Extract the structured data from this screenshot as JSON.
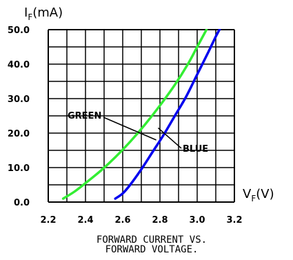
{
  "chart_data": {
    "type": "line",
    "title": "",
    "caption": [
      "FORWARD CURRENT VS.",
      "FORWARD VOLTAGE."
    ],
    "ylabel_main": "I",
    "ylabel_sub": "F",
    "ylabel_unit": "(mA)",
    "xlabel_main": "V",
    "xlabel_sub": "F",
    "xlabel_unit": "(V)",
    "xlim": [
      2.2,
      3.2
    ],
    "ylim": [
      0,
      50
    ],
    "x_ticks": [
      2.2,
      2.4,
      2.6,
      2.8,
      3.0,
      3.2
    ],
    "x_tick_labels": [
      "2.2",
      "2.4",
      "2.6",
      "2.8",
      "3.0",
      "3.2"
    ],
    "y_ticks": [
      0,
      10,
      20,
      30,
      40,
      50
    ],
    "y_tick_labels": [
      "0.0",
      "10.0",
      "20.0",
      "30.0",
      "40.0",
      "50.0"
    ],
    "grid": true,
    "series": [
      {
        "name": "GREEN",
        "color": "#33ee33",
        "points": [
          [
            2.28,
            1
          ],
          [
            2.34,
            3
          ],
          [
            2.4,
            5.5
          ],
          [
            2.48,
            9
          ],
          [
            2.56,
            13
          ],
          [
            2.64,
            17.5
          ],
          [
            2.72,
            22.5
          ],
          [
            2.8,
            28
          ],
          [
            2.88,
            34
          ],
          [
            2.95,
            40
          ],
          [
            3.0,
            45
          ],
          [
            3.05,
            50
          ]
        ]
      },
      {
        "name": "BLUE",
        "color": "#0000ee",
        "points": [
          [
            2.56,
            1
          ],
          [
            2.6,
            2.5
          ],
          [
            2.64,
            5
          ],
          [
            2.7,
            9.5
          ],
          [
            2.76,
            14.5
          ],
          [
            2.82,
            19.5
          ],
          [
            2.88,
            25
          ],
          [
            2.94,
            30.5
          ],
          [
            3.0,
            37
          ],
          [
            3.06,
            43.5
          ],
          [
            3.1,
            48
          ],
          [
            3.13,
            51
          ]
        ]
      }
    ],
    "annotations": [
      {
        "text": "GREEN",
        "series": 0,
        "at": [
          2.78,
          26
        ]
      },
      {
        "text": "BLUE",
        "series": 1,
        "at": [
          2.82,
          19.5
        ]
      }
    ]
  }
}
